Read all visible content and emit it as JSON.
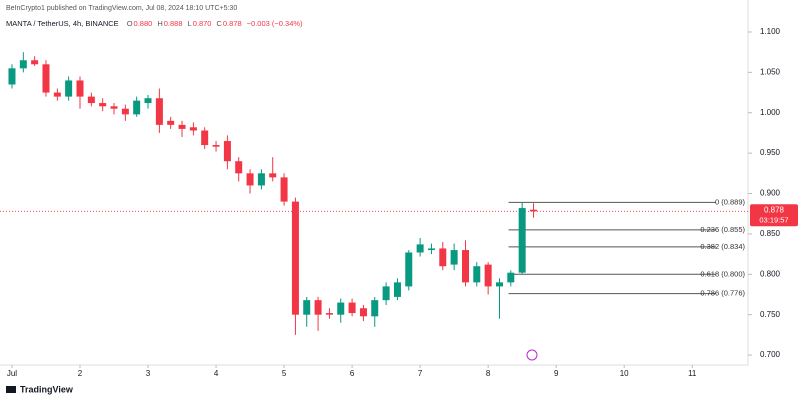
{
  "header": {
    "published": "BeInCrypto1 published on TradingView.com, Jul 08, 2024 18:10 UTC+5:30",
    "symbol": "MANTA / TetherUS, 4h, BINANCE",
    "ohlc": [
      "O",
      "0.880",
      "H",
      "0.888",
      "L",
      "0.870",
      "C",
      "0.878",
      "−0.003 (−0.34%)"
    ]
  },
  "footer": {
    "brand": "TradingView"
  },
  "chart_data": {
    "type": "candlestick",
    "up_color": "#089981",
    "down_color": "#f23645",
    "x": [
      1.0,
      1.167,
      1.333,
      1.5,
      1.667,
      1.833,
      2.0,
      2.167,
      2.333,
      2.5,
      2.667,
      2.833,
      3.0,
      3.167,
      3.333,
      3.5,
      3.667,
      3.833,
      4.0,
      4.167,
      4.333,
      4.5,
      4.667,
      4.833,
      5.0,
      5.167,
      5.333,
      5.5,
      5.667,
      5.833,
      6.0,
      6.167,
      6.333,
      6.5,
      6.667,
      6.833,
      7.0,
      7.167,
      7.333,
      7.5,
      7.667,
      7.833,
      8.0,
      8.167,
      8.333,
      8.5,
      8.667
    ],
    "open": [
      1.035,
      1.055,
      1.065,
      1.06,
      1.025,
      1.02,
      1.04,
      1.02,
      1.012,
      1.008,
      1.005,
      0.998,
      1.012,
      1.018,
      0.99,
      0.985,
      0.982,
      0.978,
      0.96,
      0.965,
      0.94,
      0.925,
      0.91,
      0.925,
      0.92,
      0.89,
      0.75,
      0.768,
      0.752,
      0.75,
      0.765,
      0.758,
      0.748,
      0.768,
      0.772,
      0.785,
      0.827,
      0.83,
      0.832,
      0.812,
      0.83,
      0.79,
      0.812,
      0.785,
      0.79,
      0.802,
      0.88
    ],
    "high": [
      1.06,
      1.075,
      1.07,
      1.065,
      1.03,
      1.045,
      1.045,
      1.025,
      1.018,
      1.012,
      1.01,
      1.02,
      1.022,
      1.03,
      0.995,
      0.99,
      0.988,
      0.982,
      0.965,
      0.972,
      0.945,
      0.93,
      0.93,
      0.945,
      0.925,
      0.895,
      0.772,
      0.772,
      0.758,
      0.77,
      0.77,
      0.762,
      0.772,
      0.79,
      0.795,
      0.83,
      0.845,
      0.838,
      0.84,
      0.838,
      0.842,
      0.815,
      0.815,
      0.795,
      0.805,
      0.889,
      0.888
    ],
    "low": [
      1.03,
      1.05,
      1.058,
      1.02,
      1.015,
      1.015,
      1.005,
      1.008,
      1.002,
      0.998,
      0.99,
      0.995,
      1.005,
      0.975,
      0.98,
      0.97,
      0.972,
      0.955,
      0.952,
      0.93,
      0.915,
      0.9,
      0.905,
      0.915,
      0.885,
      0.725,
      0.735,
      0.73,
      0.745,
      0.74,
      0.748,
      0.742,
      0.735,
      0.762,
      0.768,
      0.78,
      0.822,
      0.825,
      0.805,
      0.805,
      0.785,
      0.785,
      0.775,
      0.745,
      0.785,
      0.8,
      0.87
    ],
    "close": [
      1.055,
      1.065,
      1.06,
      1.025,
      1.02,
      1.04,
      1.02,
      1.012,
      1.008,
      1.005,
      0.998,
      1.015,
      1.018,
      0.985,
      0.985,
      0.98,
      0.978,
      0.96,
      0.958,
      0.94,
      0.925,
      0.91,
      0.925,
      0.92,
      0.89,
      0.75,
      0.768,
      0.75,
      0.75,
      0.765,
      0.752,
      0.748,
      0.768,
      0.785,
      0.79,
      0.827,
      0.837,
      0.832,
      0.81,
      0.83,
      0.79,
      0.81,
      0.785,
      0.79,
      0.802,
      0.882,
      0.878
    ],
    "last_price": 0.878,
    "last_price_label": "0.878",
    "countdown": "03:19:57",
    "fib_levels": {
      "values": [
        0.889,
        0.855,
        0.834,
        0.8,
        0.776
      ],
      "value_labels": [
        "0 (0.889)",
        "0.236 (0.855)",
        "0.382 (0.834)",
        "0.618 (0.800)",
        "0.786 (0.776)"
      ]
    },
    "xlim": [
      0.824,
      11.82
    ],
    "xticks": [
      {
        "value": 1,
        "label": "Jul"
      },
      2,
      3,
      4,
      5,
      6,
      7,
      8,
      9,
      10,
      11
    ],
    "ylim": [
      0.6877,
      1.1396
    ],
    "yticks": [
      {
        "value": 0.7,
        "label": "0.700"
      },
      {
        "value": 0.75,
        "label": "0.750"
      },
      {
        "value": 0.8,
        "label": "0.800"
      },
      {
        "value": 0.85,
        "label": "0.850"
      },
      {
        "value": 0.9,
        "label": "0.900"
      },
      {
        "value": 0.95,
        "label": "0.950"
      },
      {
        "value": 1.0,
        "label": "1.000"
      },
      {
        "value": 1.05,
        "label": "1.050"
      },
      {
        "value": 1.1,
        "label": "1.100"
      }
    ]
  }
}
